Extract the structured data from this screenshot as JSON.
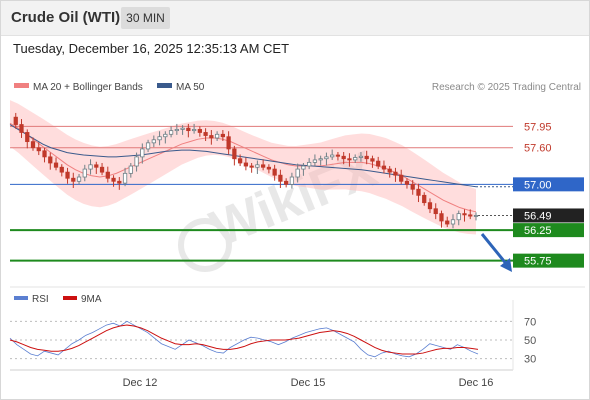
{
  "header": {
    "title": "Crude Oil (WTI)",
    "timeframe": "30 MIN",
    "datetime": "Tuesday, December 16, 2025 12:35:13 AM CET"
  },
  "legend": {
    "items": [
      {
        "label": "MA 20 + Bollinger Bands",
        "color": "#f08080"
      },
      {
        "label": "MA 50",
        "color": "#3a5a8c"
      }
    ],
    "source": "Research © 2025 Trading Central"
  },
  "rsi_legend": {
    "items": [
      {
        "label": "RSI",
        "color": "#5b7fd1"
      },
      {
        "label": "9MA",
        "color": "#cc1111"
      }
    ]
  },
  "watermark": "WikiFX",
  "colors": {
    "candle_bull": "#6e7f86",
    "candle_bear": "#c0392b",
    "resistance": "#e07a7a",
    "pivot": "#2f66c8",
    "support": "#1e8a1e",
    "current": "#222222",
    "band_fill": "#ffb3b3"
  },
  "chart_data": [
    {
      "type": "candlestick",
      "title": "",
      "x_ticks": [
        "Dec 12",
        "Dec 15",
        "Dec 16"
      ],
      "ylim": [
        55.4,
        58.3
      ],
      "levels": [
        {
          "label": "57.95",
          "value": 57.95,
          "kind": "resistance"
        },
        {
          "label": "57.60",
          "value": 57.6,
          "kind": "resistance"
        },
        {
          "label": "57.00",
          "value": 57.0,
          "kind": "pivot"
        },
        {
          "label": "56.49",
          "value": 56.49,
          "kind": "current"
        },
        {
          "label": "56.25",
          "value": 56.25,
          "kind": "support"
        },
        {
          "label": "55.75",
          "value": 55.75,
          "kind": "support"
        }
      ],
      "close_series": [
        58.1,
        57.98,
        57.85,
        57.7,
        57.6,
        57.55,
        57.45,
        57.35,
        57.28,
        57.2,
        57.1,
        57.05,
        57.12,
        57.25,
        57.32,
        57.28,
        57.2,
        57.1,
        57.05,
        57.02,
        57.18,
        57.3,
        57.45,
        57.58,
        57.68,
        57.73,
        57.78,
        57.82,
        57.88,
        57.9,
        57.92,
        57.88,
        57.9,
        57.85,
        57.8,
        57.76,
        57.82,
        57.78,
        57.58,
        57.42,
        57.35,
        57.3,
        57.28,
        57.32,
        57.28,
        57.25,
        57.15,
        57.05,
        57.0,
        57.12,
        57.25,
        57.3,
        57.36,
        57.4,
        57.42,
        57.45,
        57.48,
        57.46,
        57.42,
        57.4,
        57.44,
        57.46,
        57.42,
        57.38,
        57.3,
        57.25,
        57.2,
        57.15,
        57.05,
        57.0,
        56.92,
        56.82,
        56.7,
        56.6,
        56.52,
        56.4,
        56.35,
        56.42,
        56.52,
        56.5,
        56.48,
        56.49
      ],
      "ma20": [
        58.0,
        57.92,
        57.82,
        57.72,
        57.62,
        57.52,
        57.42,
        57.32,
        57.24,
        57.18,
        57.14,
        57.12,
        57.14,
        57.18,
        57.24,
        57.3,
        57.36,
        57.42,
        57.48,
        57.54,
        57.6,
        57.66,
        57.7,
        57.74,
        57.76,
        57.76,
        57.74,
        57.7,
        57.64,
        57.58,
        57.52,
        57.46,
        57.4,
        57.36,
        57.32,
        57.3,
        57.3,
        57.3,
        57.3,
        57.32,
        57.34,
        57.36,
        57.36,
        57.36,
        57.34,
        57.3,
        57.26,
        57.2,
        57.14,
        57.06,
        56.98,
        56.9,
        56.82,
        56.74,
        56.68,
        56.62,
        56.58,
        56.55
      ],
      "ma50": [
        57.98,
        57.9,
        57.82,
        57.74,
        57.66,
        57.6,
        57.56,
        57.52,
        57.5,
        57.48,
        57.47,
        57.46,
        57.45,
        57.45,
        57.46,
        57.47,
        57.48,
        57.5,
        57.52,
        57.54,
        57.55,
        57.56,
        57.56,
        57.55,
        57.54,
        57.52,
        57.5,
        57.48,
        57.46,
        57.44,
        57.42,
        57.4,
        57.38,
        57.36,
        57.34,
        57.32,
        57.31,
        57.3,
        57.29,
        57.28,
        57.27,
        57.26,
        57.25,
        57.24,
        57.22,
        57.2,
        57.18,
        57.16,
        57.14,
        57.12,
        57.1,
        57.08,
        57.06,
        57.04,
        57.02,
        57.0,
        56.98,
        56.96
      ]
    },
    {
      "type": "line",
      "title": "RSI",
      "ylim": [
        20,
        80
      ],
      "y_ticks": [
        "70",
        "50",
        "30"
      ],
      "series": [
        {
          "name": "RSI",
          "values": [
            52,
            45,
            40,
            35,
            33,
            38,
            36,
            34,
            40,
            46,
            50,
            55,
            58,
            62,
            66,
            68,
            65,
            70,
            66,
            62,
            58,
            52,
            46,
            43,
            40,
            45,
            50,
            47,
            44,
            40,
            37,
            36,
            42,
            46,
            50,
            53,
            52,
            50,
            48,
            45,
            48,
            52,
            55,
            58,
            60,
            62,
            63,
            60,
            56,
            52,
            48,
            40,
            34,
            32,
            36,
            38,
            35,
            33,
            32,
            35,
            40,
            46,
            44,
            42,
            40,
            45,
            42,
            38,
            35
          ]
        },
        {
          "name": "9MA",
          "values": [
            50,
            48,
            45,
            42,
            40,
            39,
            38,
            38,
            39,
            41,
            44,
            48,
            52,
            56,
            60,
            63,
            65,
            66,
            65,
            63,
            60,
            56,
            52,
            49,
            46,
            45,
            45,
            46,
            45,
            43,
            41,
            40,
            40,
            41,
            43,
            46,
            48,
            49,
            50,
            50,
            50,
            51,
            52,
            54,
            56,
            58,
            59,
            60,
            59,
            57,
            54,
            50,
            46,
            42,
            39,
            37,
            36,
            35,
            35,
            35,
            36,
            38,
            40,
            41,
            41,
            42,
            42,
            41,
            40
          ]
        }
      ]
    }
  ]
}
